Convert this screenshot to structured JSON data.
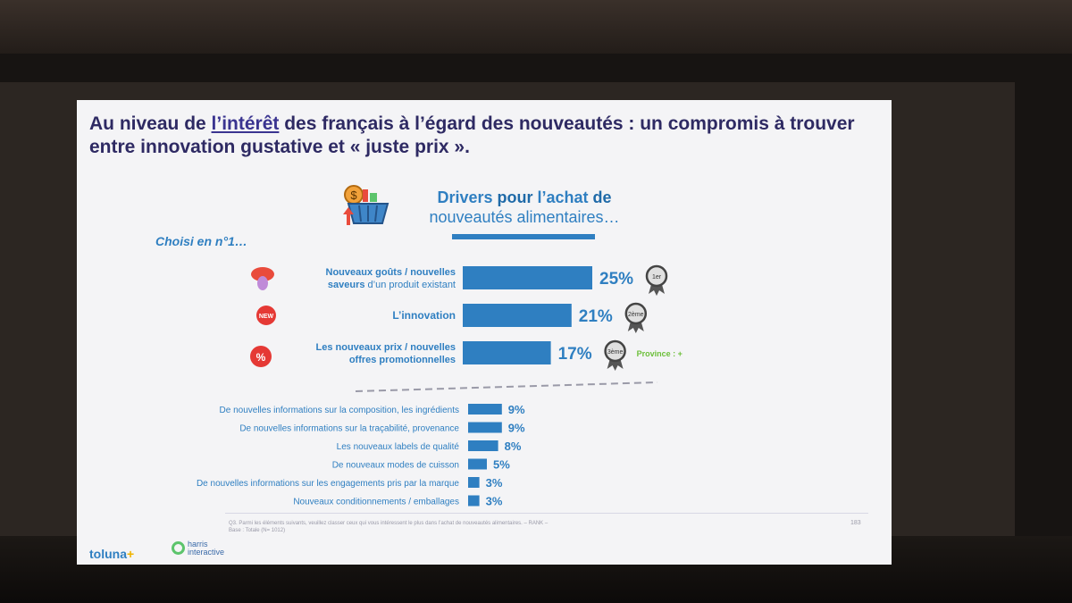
{
  "slide": {
    "title_pre": "Au niveau de ",
    "title_link": "l’intérêt",
    "title_post": " des français à l’égard des nouveautés : un compromis à trouver entre innovation gustative et « juste prix ».",
    "header_bold1": "Drivers",
    "header_normal1": " pour ",
    "header_bold2": "l’achat",
    "header_normal2": " de",
    "header_line2": "nouveautés alimentaires…",
    "choisi": "Choisi en n°1…",
    "province_note": "Province : +",
    "footnote_line1": "Q3. Parmi les éléments suivants, veuillez classer ceux qui vous intéressent le plus dans l’achat de nouveautés alimentaires. – RANK –",
    "footnote_line2": "Base : Totale (N= 1012)",
    "page_number": "183",
    "logo_toluna": "toluna",
    "logo_harris_1": "harris",
    "logo_harris_2": "interactive"
  },
  "colors": {
    "bar": "#2f7fc1",
    "title": "#2e2a63",
    "province": "#6cbf3a"
  },
  "chart_data": {
    "type": "bar",
    "orientation": "horizontal",
    "top_items": [
      {
        "label_bold": "Nouveaux goûts / nouvelles",
        "label_line2_bold": "saveurs",
        "label_line2_rest": " d’un produit existant",
        "value": 25,
        "value_label": "25%",
        "rank": "1er",
        "icon": "tongue-icon"
      },
      {
        "label_bold": "L’innovation",
        "value": 21,
        "value_label": "21%",
        "rank": "2ème",
        "icon": "new-badge-icon"
      },
      {
        "label_bold": "Les nouveaux prix / nouvelles",
        "label_line2_bold": "offres promotionnelles",
        "value": 17,
        "value_label": "17%",
        "rank": "3ème",
        "icon": "percent-badge-icon"
      }
    ],
    "other_items": [
      {
        "label": "De nouvelles informations sur la composition, les ingrédients",
        "value": 9,
        "value_label": "9%"
      },
      {
        "label": "De nouvelles informations sur la traçabilité, provenance",
        "value": 9,
        "value_label": "9%"
      },
      {
        "label": "Les nouveaux labels de qualité",
        "value": 8,
        "value_label": "8%"
      },
      {
        "label": "De nouveaux modes de cuisson",
        "value": 5,
        "value_label": "5%"
      },
      {
        "label": "De nouvelles informations sur les engagements pris par la marque",
        "value": 3,
        "value_label": "3%"
      },
      {
        "label": "Nouveaux conditionnements / emballages",
        "value": 3,
        "value_label": "3%"
      }
    ]
  }
}
